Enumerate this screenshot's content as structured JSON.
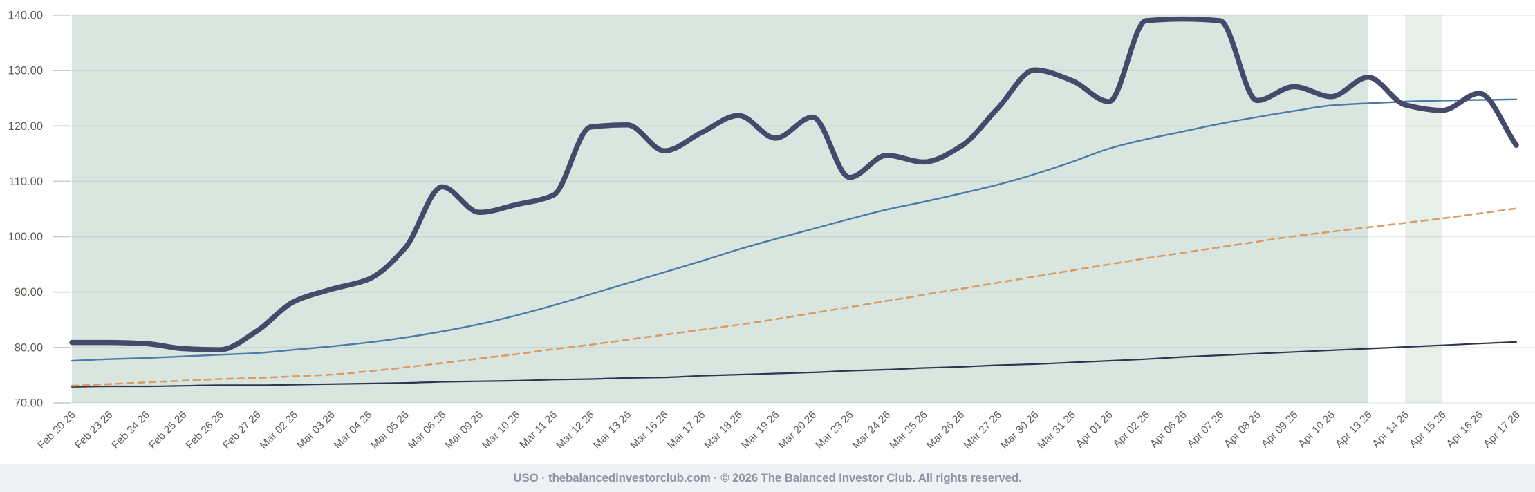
{
  "footer": {
    "text": "USO · thebalancedinvestorclub.com · © 2026 The Balanced Investor Club. All rights reserved."
  },
  "colors": {
    "background": "#ffffff",
    "band_primary": "#d9e6e0",
    "band_secondary": "#e7efe9",
    "grid_line": "rgba(70,70,70,0.10)",
    "axis_tick_stub": "rgba(70,70,70,0.20)",
    "axis_text": "#5e5b56",
    "footer_background": "#eff1f5",
    "footer_text": "#8d95a4",
    "series_main": "#454a6a",
    "series_trend": "#4a7aa6",
    "series_dashed": "#d99c64",
    "series_baseline": "#2f3550"
  },
  "chart_data": {
    "type": "line",
    "title": "",
    "xlabel": "",
    "ylabel": "",
    "ylim": [
      70,
      140
    ],
    "grid": true,
    "legend_position": "none",
    "y_tick_labels": [
      "140.00",
      "130.00",
      "120.00",
      "110.00",
      "100.00",
      "90.00",
      "80.00",
      "70.00"
    ],
    "categories": [
      "Feb 20 26",
      "Feb 23 26",
      "Feb 24 26",
      "Feb 25 26",
      "Feb 26 26",
      "Feb 27 26",
      "Mar 02 26",
      "Mar 03 26",
      "Mar 04 26",
      "Mar 05 26",
      "Mar 06 26",
      "Mar 09 26",
      "Mar 10 26",
      "Mar 11 26",
      "Mar 12 26",
      "Mar 13 26",
      "Mar 16 26",
      "Mar 17 26",
      "Mar 18 26",
      "Mar 19 26",
      "Mar 20 26",
      "Mar 23 26",
      "Mar 24 26",
      "Mar 25 26",
      "Mar 26 26",
      "Mar 27 26",
      "Mar 30 26",
      "Mar 31 26",
      "Apr 01 26",
      "Apr 02 26",
      "Apr 06 26",
      "Apr 07 26",
      "Apr 08 26",
      "Apr 09 26",
      "Apr 10 26",
      "Apr 13 26",
      "Apr 14 26",
      "Apr 15 26",
      "Apr 16 26",
      "Apr 17 26"
    ],
    "series": [
      {
        "name": "price_main",
        "style": "solid",
        "width": 7.5,
        "color_key": "series_main",
        "values": [
          80.9,
          80.9,
          80.7,
          79.8,
          79.6,
          83.0,
          88.3,
          90.5,
          92.3,
          98.0,
          109.0,
          104.4,
          105.8,
          107.5,
          119.8,
          120.2,
          115.5,
          118.8,
          121.9,
          117.8,
          121.6,
          110.7,
          114.7,
          113.5,
          116.3,
          123.2,
          130.1,
          128.2,
          124.4,
          139.0,
          139.3,
          139.0,
          124.6,
          127.1,
          125.3,
          128.8,
          123.8,
          122.8,
          125.9,
          116.5
        ]
      },
      {
        "name": "trend_line",
        "style": "solid",
        "width": 2.4,
        "color_key": "series_trend",
        "values": [
          77.6,
          77.9,
          78.1,
          78.4,
          78.7,
          79.0,
          79.6,
          80.2,
          80.9,
          81.8,
          82.9,
          84.2,
          85.8,
          87.6,
          89.6,
          91.6,
          93.6,
          95.6,
          97.7,
          99.6,
          101.4,
          103.2,
          104.9,
          106.3,
          107.8,
          109.4,
          111.3,
          113.5,
          115.9,
          117.6,
          119.0,
          120.4,
          121.6,
          122.7,
          123.7,
          124.1,
          124.4,
          124.6,
          124.7,
          124.8
        ]
      },
      {
        "name": "dashed_projection",
        "style": "dashed",
        "width": 2.6,
        "color_key": "series_dashed",
        "values": [
          73.1,
          73.4,
          73.7,
          74.0,
          74.3,
          74.5,
          74.8,
          75.1,
          75.7,
          76.4,
          77.2,
          78.0,
          78.8,
          79.7,
          80.5,
          81.4,
          82.3,
          83.2,
          84.1,
          85.1,
          86.2,
          87.3,
          88.4,
          89.5,
          90.6,
          91.7,
          92.8,
          93.9,
          95.0,
          96.1,
          97.1,
          98.1,
          99.1,
          100.1,
          100.9,
          101.7,
          102.5,
          103.3,
          104.2,
          105.1
        ]
      },
      {
        "name": "lower_baseline",
        "style": "solid",
        "width": 2.2,
        "color_key": "series_baseline",
        "values": [
          72.9,
          73.0,
          73.0,
          73.1,
          73.2,
          73.2,
          73.3,
          73.4,
          73.5,
          73.6,
          73.8,
          73.9,
          74.0,
          74.2,
          74.3,
          74.5,
          74.6,
          74.9,
          75.1,
          75.3,
          75.5,
          75.8,
          76.0,
          76.3,
          76.5,
          76.8,
          77.0,
          77.3,
          77.6,
          77.9,
          78.3,
          78.6,
          78.9,
          79.2,
          79.5,
          79.8,
          80.1,
          80.4,
          80.7,
          81.0
        ]
      }
    ],
    "shaded_bands": [
      {
        "from": "Feb 20 26",
        "to": "Apr 13 26",
        "color_key": "band_primary"
      },
      {
        "from": "Apr 14 26",
        "to": "Apr 15 26",
        "color_key": "band_secondary"
      }
    ]
  }
}
